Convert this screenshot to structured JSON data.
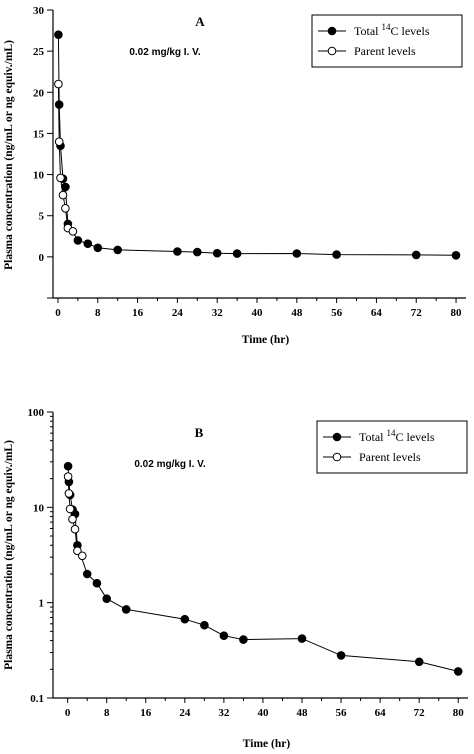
{
  "chart_data": [
    {
      "type": "line",
      "panel_label": "A",
      "annotation": "0.02 mg/kg I. V.",
      "title": "",
      "xlabel": "Time (hr)",
      "ylabel": "Plasma concentration (ng/mL or ng equiv./mL)",
      "y_scale": "linear",
      "xlim": [
        -1,
        82
      ],
      "ylim": [
        -5,
        30
      ],
      "xticks": [
        "0",
        "8",
        "16",
        "24",
        "32",
        "40",
        "48",
        "56",
        "64",
        "72",
        "80"
      ],
      "yticks": [
        "0",
        "5",
        "10",
        "15",
        "20",
        "25",
        "30"
      ],
      "legend_position": "top-right",
      "legend": [
        {
          "pre": "Total ",
          "sup": "14",
          "post": "C levels",
          "marker": "filled-circle"
        },
        {
          "pre": "Parent levels",
          "sup": "",
          "post": "",
          "marker": "open-circle"
        }
      ],
      "series": [
        {
          "marker": "filled-circle",
          "x": [
            0.083,
            0.25,
            0.5,
            1,
            1.5,
            2,
            4,
            6,
            8,
            12,
            24,
            28,
            32,
            36,
            48,
            56,
            72,
            80
          ],
          "y": [
            27.0,
            18.5,
            13.5,
            9.5,
            8.5,
            4.0,
            2.0,
            1.6,
            1.1,
            0.85,
            0.65,
            0.58,
            0.45,
            0.4,
            0.41,
            0.28,
            0.24,
            0.19
          ]
        },
        {
          "marker": "open-circle",
          "x": [
            0.083,
            0.25,
            0.5,
            1,
            1.5,
            2,
            3
          ],
          "y": [
            21.0,
            14.0,
            9.6,
            7.5,
            5.9,
            3.5,
            3.1
          ]
        }
      ]
    },
    {
      "type": "line",
      "panel_label": "B",
      "annotation": "0.02 mg/kg I. V.",
      "title": "",
      "xlabel": "Time (hr)",
      "ylabel": "Plasma concentration (ng/mL or ng equiv./mL)",
      "y_scale": "log",
      "xlim": [
        -3,
        82
      ],
      "ylim": [
        0.1,
        100
      ],
      "xticks": [
        "0",
        "8",
        "16",
        "24",
        "32",
        "40",
        "48",
        "56",
        "64",
        "72",
        "80"
      ],
      "yticks": [
        "0.1",
        "1",
        "10",
        "100"
      ],
      "legend_position": "top-right",
      "legend": [
        {
          "pre": "Total ",
          "sup": "14",
          "post": "C levels",
          "marker": "filled-circle"
        },
        {
          "pre": "Parent levels",
          "sup": "",
          "post": "",
          "marker": "open-circle"
        }
      ],
      "series": [
        {
          "marker": "filled-circle",
          "x": [
            0.083,
            0.25,
            0.5,
            1,
            1.5,
            2,
            4,
            6,
            8,
            12,
            24,
            28,
            32,
            36,
            48,
            56,
            72,
            80
          ],
          "y": [
            27.0,
            18.5,
            13.5,
            9.5,
            8.5,
            4.0,
            2.0,
            1.6,
            1.1,
            0.85,
            0.67,
            0.58,
            0.45,
            0.41,
            0.42,
            0.28,
            0.24,
            0.19
          ]
        },
        {
          "marker": "open-circle",
          "x": [
            0.083,
            0.25,
            0.5,
            1,
            1.5,
            2,
            3
          ],
          "y": [
            21.0,
            14.0,
            9.6,
            7.5,
            5.9,
            3.5,
            3.1
          ]
        }
      ]
    }
  ]
}
